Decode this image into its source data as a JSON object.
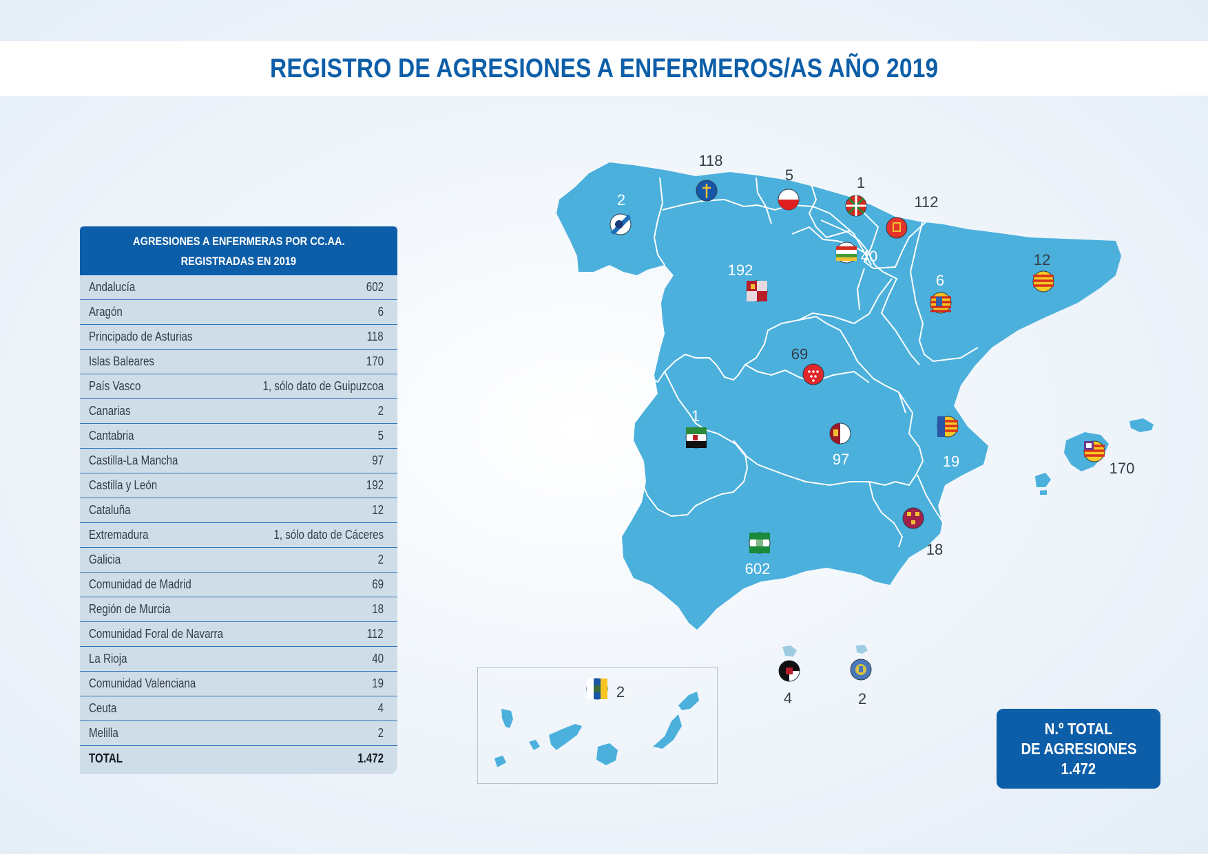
{
  "title": "REGISTRO DE AGRESIONES A ENFERMEROS/AS AÑO 2019",
  "table": {
    "header_line1": "AGRESIONES A ENFERMERAS POR CC.AA.",
    "header_line2": "REGISTRADAS EN 2019",
    "rows": [
      {
        "name": "Andalucía",
        "value": "602"
      },
      {
        "name": "Aragón",
        "value": "6"
      },
      {
        "name": "Principado de Asturias",
        "value": "118"
      },
      {
        "name": "Islas Baleares",
        "value": "170"
      },
      {
        "name": "País Vasco",
        "value": "1, sólo dato de Guipuzcoa"
      },
      {
        "name": "Canarias",
        "value": "2"
      },
      {
        "name": "Cantabria",
        "value": "5"
      },
      {
        "name": "Castilla-La Mancha",
        "value": "97"
      },
      {
        "name": "Castilla y León",
        "value": "192"
      },
      {
        "name": "Cataluña",
        "value": "12"
      },
      {
        "name": "Extremadura",
        "value": "1, sólo dato de Cáceres"
      },
      {
        "name": "Galicia",
        "value": "2"
      },
      {
        "name": "Comunidad de Madrid",
        "value": "69"
      },
      {
        "name": "Región de Murcia",
        "value": "18"
      },
      {
        "name": "Comunidad Foral de Navarra",
        "value": "112"
      },
      {
        "name": "La Rioja",
        "value": "40"
      },
      {
        "name": "Comunidad Valenciana",
        "value": "19"
      },
      {
        "name": "Ceuta",
        "value": "4"
      },
      {
        "name": "Melilla",
        "value": "2"
      }
    ],
    "total_label": "TOTAL",
    "total_value": "1.472"
  },
  "map": {
    "labels": {
      "galicia": "2",
      "asturias": "118",
      "cantabria": "5",
      "pais_vasco": "1",
      "navarra": "112",
      "la_rioja": "40",
      "castilla_leon": "192",
      "aragon": "6",
      "cataluna": "12",
      "madrid": "69",
      "extremadura": "1",
      "castilla_la_mancha": "97",
      "valenciana": "19",
      "baleares": "170",
      "murcia": "18",
      "andalucia": "602",
      "ceuta": "4",
      "melilla": "2",
      "canarias": "2"
    },
    "colors": {
      "land": "#4bb0dc",
      "border": "#ffffff",
      "ceuta_melilla_land": "#9dcbe2",
      "accent": "#0d5ea8"
    }
  },
  "total_box": {
    "line1": "N.º TOTAL",
    "line2": "DE AGRESIONES",
    "line3": "1.472"
  }
}
